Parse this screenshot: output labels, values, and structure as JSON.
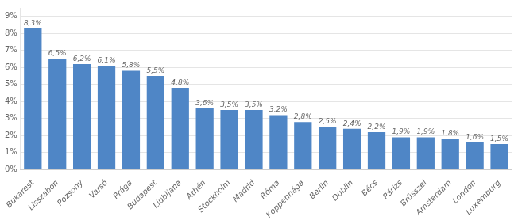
{
  "chart_data": {
    "type": "bar",
    "categories": [
      "Bukarest",
      "Lisszabon",
      "Pozsony",
      "Varsó",
      "Prága",
      "Budapest",
      "Ljubljana",
      "Athén",
      "Stockholm",
      "Madrid",
      "Róma",
      "Koppenhága",
      "Berlin",
      "Dublin",
      "Bécs",
      "Párizs",
      "Brüsszel",
      "Amsterdam",
      "London",
      "Luxemburg"
    ],
    "values": [
      8.3,
      6.5,
      6.2,
      6.1,
      5.8,
      5.5,
      4.8,
      3.6,
      3.5,
      3.5,
      3.2,
      2.8,
      2.5,
      2.4,
      2.2,
      1.9,
      1.9,
      1.8,
      1.6,
      1.5
    ],
    "value_labels": [
      "8,3%",
      "6,5%",
      "6,2%",
      "6,1%",
      "5,8%",
      "5,5%",
      "4,8%",
      "3,6%",
      "3,5%",
      "3,5%",
      "3,2%",
      "2,8%",
      "2,5%",
      "2,4%",
      "2,2%",
      "1,9%",
      "1,9%",
      "1,8%",
      "1,6%",
      "1,5%"
    ],
    "color": "#4f86c6",
    "ylim": [
      0,
      9.5
    ],
    "yticks": [
      {
        "value": 0,
        "label": "0%"
      },
      {
        "value": 1,
        "label": "1%"
      },
      {
        "value": 2,
        "label": "2%"
      },
      {
        "value": 3,
        "label": "3%"
      },
      {
        "value": 4,
        "label": "4%"
      },
      {
        "value": 5,
        "label": "5%"
      },
      {
        "value": 6,
        "label": "6%"
      },
      {
        "value": 7,
        "label": "7%"
      },
      {
        "value": 8,
        "label": "8%"
      },
      {
        "value": 9,
        "label": "9%"
      }
    ],
    "grid": true,
    "data_labels": true
  }
}
